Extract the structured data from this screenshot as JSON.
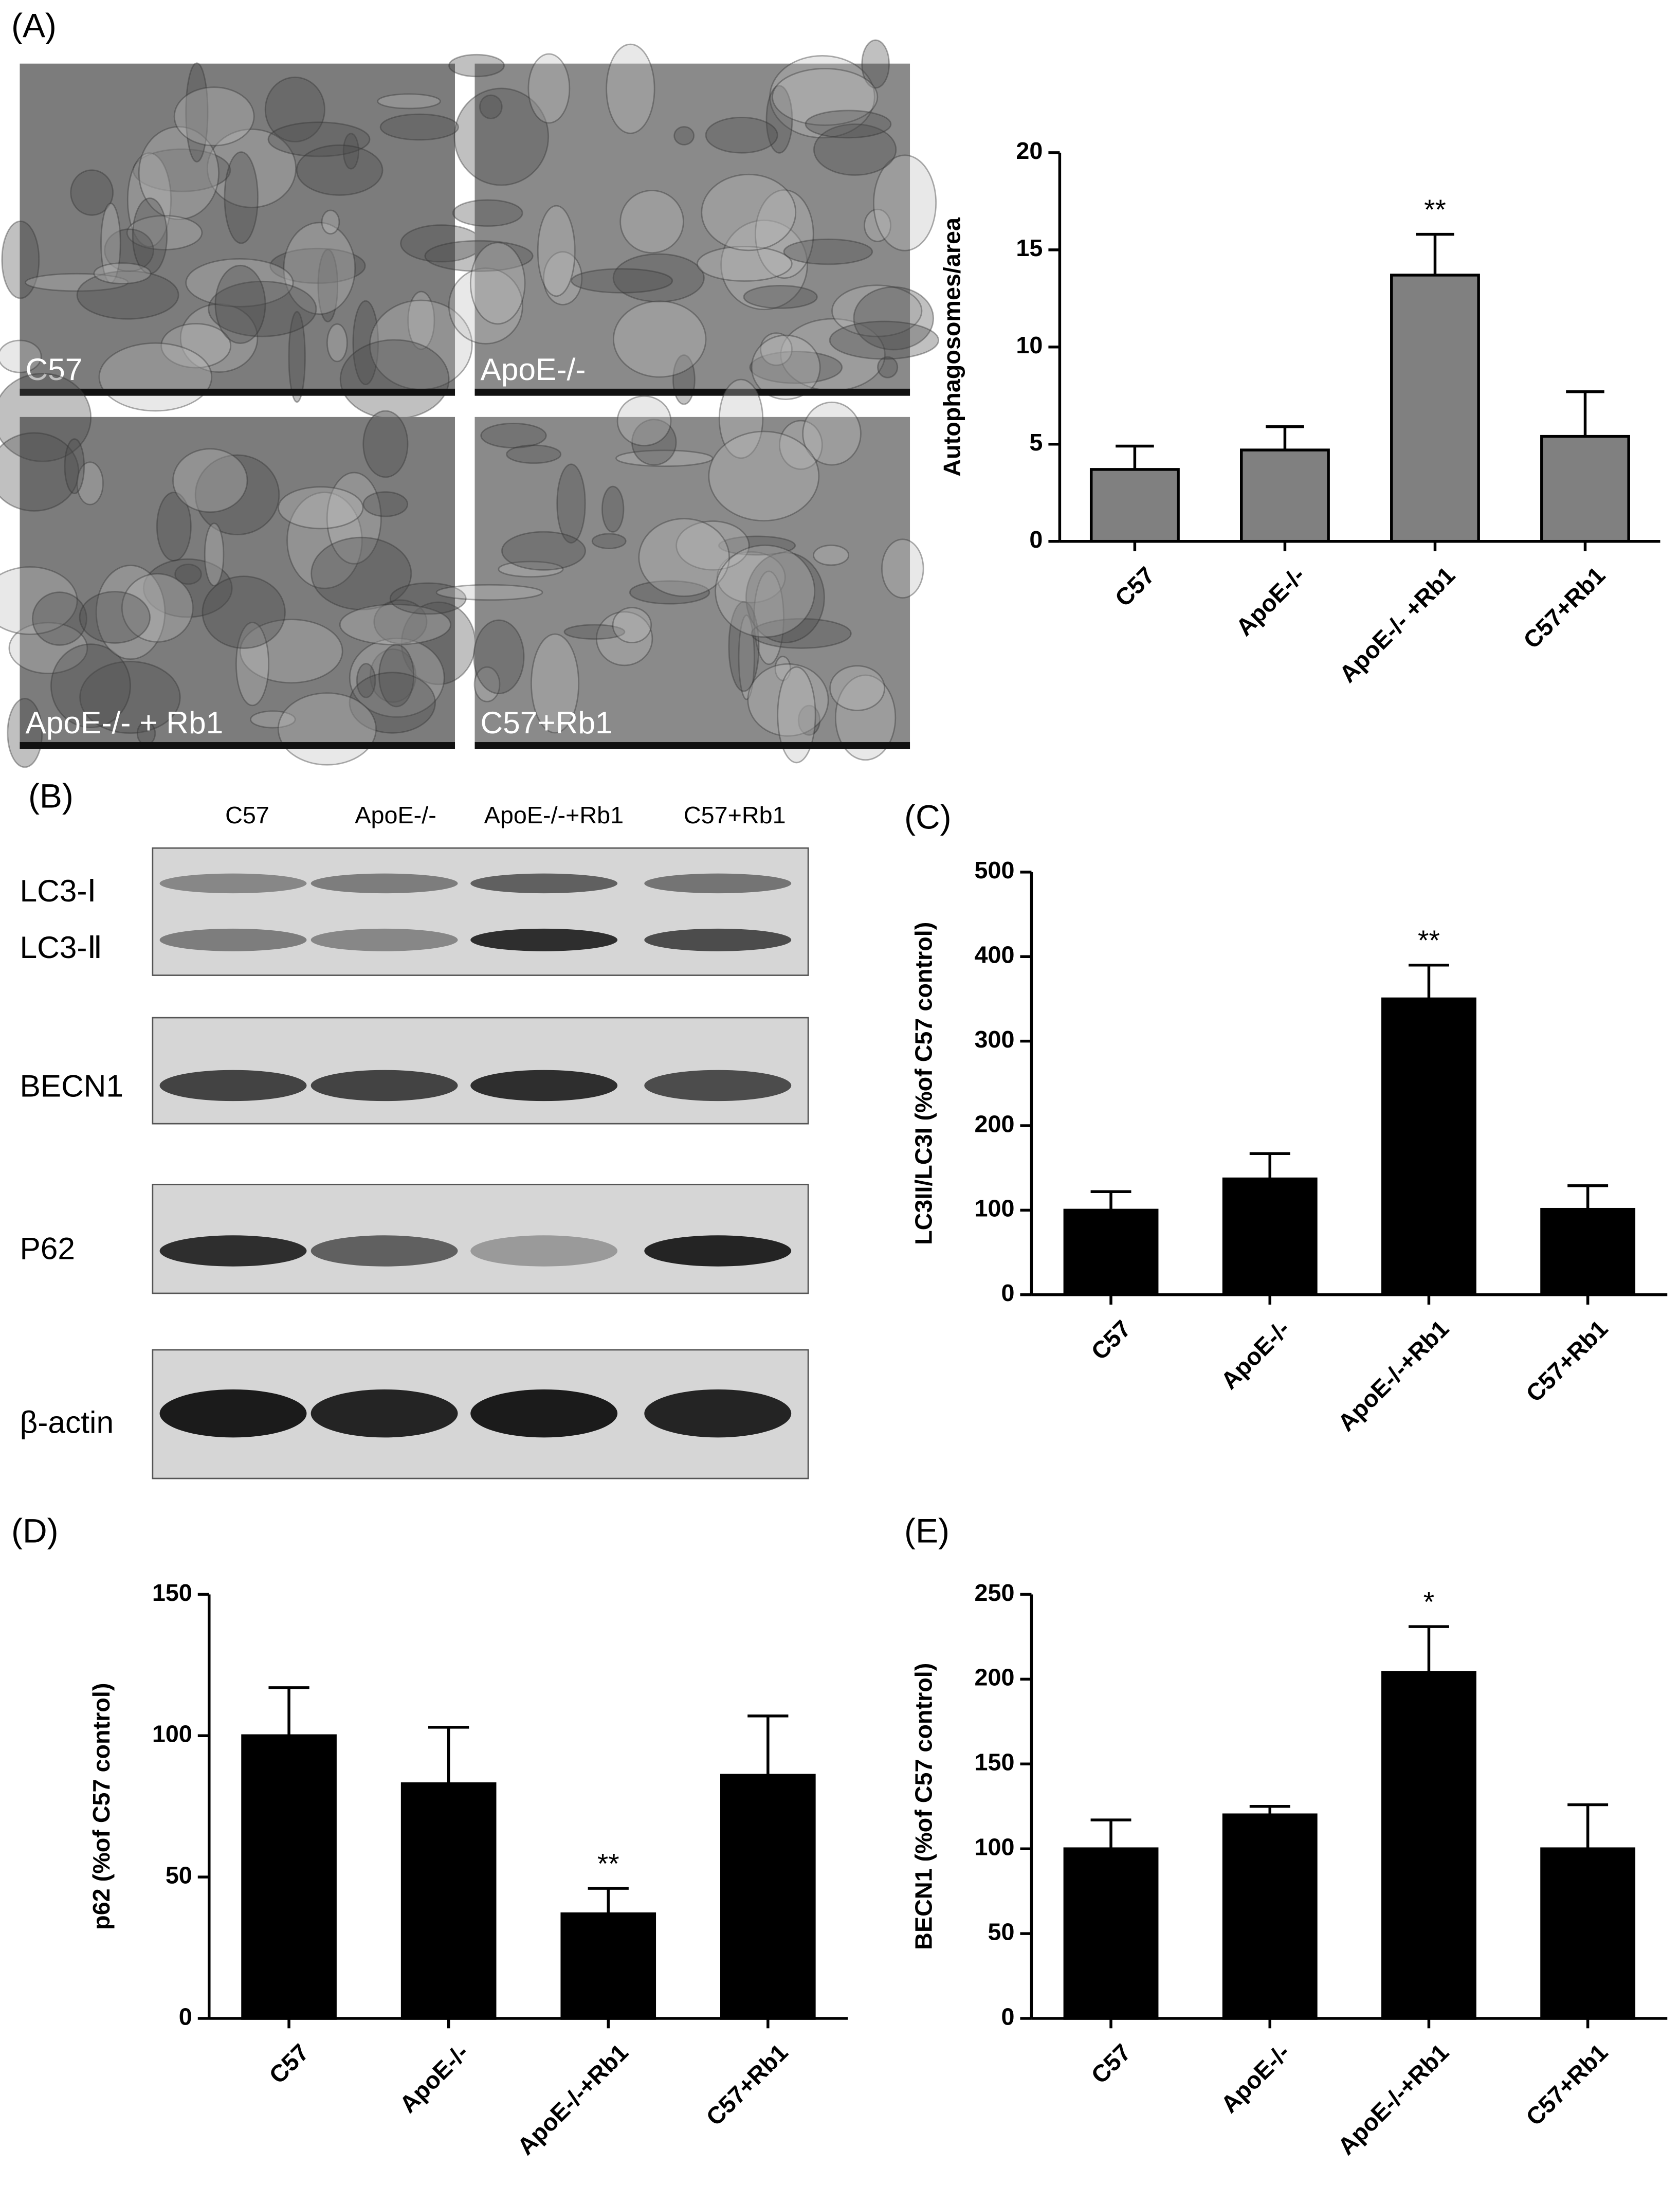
{
  "micrographs": {
    "panel_label": "(A)",
    "labels": [
      "C57",
      "ApoE-/-",
      "ApoE-/- + Rb1",
      "C57+Rb1"
    ]
  },
  "western_blot": {
    "panel_label": "(B)",
    "lanes": [
      "C57",
      "ApoE-/-",
      "ApoE-/-+Rb1",
      "C57+Rb1"
    ],
    "rows": [
      "LC3-Ⅰ",
      "LC3-Ⅱ",
      "BECN1",
      "P62",
      "β-actin"
    ]
  },
  "chart_data": [
    {
      "type": "bar",
      "ylabel": "Autophagosomes/area",
      "categories": [
        "C57",
        "ApoE-/-",
        "ApoE-/- +Rb1",
        "C57+Rb1"
      ],
      "values": [
        3.7,
        4.7,
        13.7,
        5.4
      ],
      "errors": [
        1.2,
        1.2,
        2.1,
        2.3
      ],
      "color": "#808080",
      "ylim": [
        0,
        20
      ],
      "yticks": [
        0,
        5,
        10,
        15,
        20
      ],
      "annotations": [
        {
          "text": "**",
          "category": "ApoE-/- +Rb1"
        }
      ]
    },
    {
      "type": "bar",
      "title": "(C)",
      "ylabel": "LC3II/LC3I (%of C57 control)",
      "categories": [
        "C57",
        "ApoE-/-",
        "ApoE-/-+Rb1",
        "C57+Rb1"
      ],
      "values": [
        100,
        137,
        350,
        101
      ],
      "errors": [
        22,
        30,
        40,
        28
      ],
      "color": "#000000",
      "ylim": [
        0,
        500
      ],
      "yticks": [
        0,
        100,
        200,
        300,
        400,
        500
      ],
      "annotations": [
        {
          "text": "**",
          "category": "ApoE-/-+Rb1"
        }
      ]
    },
    {
      "type": "bar",
      "title": "(D)",
      "ylabel": "p62 (%of C57 control)",
      "categories": [
        "C57",
        "ApoE-/-",
        "ApoE-/-+Rb1",
        "C57+Rb1"
      ],
      "values": [
        100,
        83,
        37,
        86
      ],
      "errors": [
        17,
        20,
        9,
        21
      ],
      "color": "#000000",
      "ylim": [
        0,
        150
      ],
      "yticks": [
        0,
        50,
        100,
        150
      ],
      "annotations": [
        {
          "text": "**",
          "category": "ApoE-/-+Rb1"
        }
      ]
    },
    {
      "type": "bar",
      "title": "(E)",
      "ylabel": "BECN1 (%of C57 control)",
      "categories": [
        "C57",
        "ApoE-/-",
        "ApoE-/-+Rb1",
        "C57+Rb1"
      ],
      "values": [
        100,
        120,
        204,
        100
      ],
      "errors": [
        17,
        5,
        27,
        26
      ],
      "color": "#000000",
      "ylim": [
        0,
        250
      ],
      "yticks": [
        0,
        50,
        100,
        150,
        200,
        250
      ],
      "annotations": [
        {
          "text": "*",
          "category": "ApoE-/-+Rb1"
        }
      ]
    }
  ]
}
